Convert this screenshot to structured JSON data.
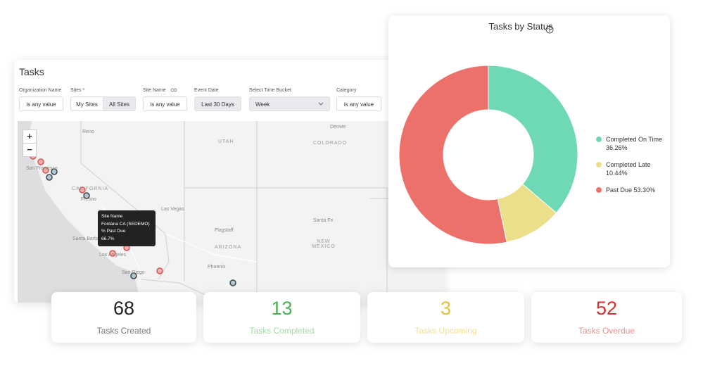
{
  "filters_panel": {
    "title": "Tasks",
    "filters": [
      {
        "label": "Organization Name",
        "value": "is any value"
      },
      {
        "label": "Sites *",
        "options": [
          "My Sites",
          "All Sites"
        ]
      },
      {
        "label": "Site Name",
        "value": "is any value"
      },
      {
        "label": "Event Date",
        "value": "Last 30 Days"
      },
      {
        "label": "Select Time Bucket",
        "value": "Week"
      },
      {
        "label": "Category",
        "value": "is any value"
      }
    ]
  },
  "map": {
    "zoom": [
      "+",
      "−"
    ],
    "labels": [
      "Reno",
      "Denver",
      "UTAH",
      "COLORADO",
      "San Francisco",
      "CALIFORNIA",
      "Fresno",
      "Las Vegas",
      "Santa Fe",
      "Flagstaff",
      "NEW MEXICO",
      "ARIZONA",
      "Santa Barbara",
      "Los Angeles",
      "Phoenix",
      "San Diego"
    ],
    "tooltip": [
      "Site Name",
      "Fontana CA (SEDEMO)",
      "% Past Due",
      "66.7%"
    ]
  },
  "chart_data": {
    "type": "donut",
    "title": "Tasks by Status",
    "categories": [
      "Completed On Time",
      "Completed Late",
      "Past Due"
    ],
    "values": [
      36.26,
      10.44,
      53.3
    ],
    "value_labels": [
      "36.26%",
      "10.44%",
      "53.30%"
    ],
    "colors": [
      "#6fd8b4",
      "#ebdf8c",
      "#ec716b"
    ]
  },
  "kpis": [
    {
      "value": 68,
      "label": "Tasks Created",
      "color": "#222222",
      "label_color": "#777777"
    },
    {
      "value": 13,
      "label": "Tasks Completed",
      "color": "#4caf50",
      "label_color": "#a5d6a7"
    },
    {
      "value": 3,
      "label": "Tasks Upcoming",
      "color": "#e6c13d",
      "label_color": "#f1df8d"
    },
    {
      "value": 52,
      "label": "Tasks Overdue",
      "color": "#d32f2f",
      "label_color": "#eb8f8c"
    }
  ]
}
